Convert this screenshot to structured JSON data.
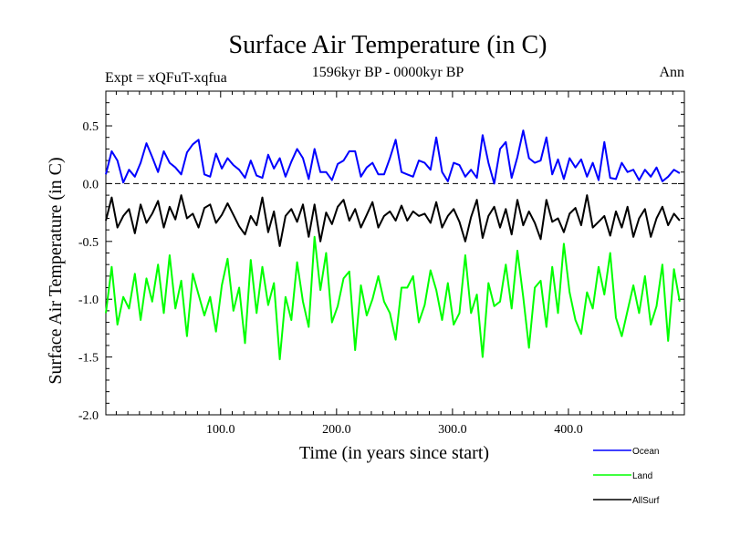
{
  "chart_data": {
    "type": "line",
    "title": "Surface Air Temperature (in C)",
    "subtitle": "1596kyr BP - 0000kyr BP",
    "left_label": "Expt = xQFuT-xqfua",
    "right_label": "Ann",
    "xlabel": "Time (in years since start)",
    "ylabel": "Surface Air Temperature (in C)",
    "xlim": [
      1,
      500
    ],
    "ylim": [
      -2.0,
      0.8
    ],
    "x_ticks": [
      100,
      200,
      300,
      400
    ],
    "x_tick_labels": [
      "100.0",
      "200.0",
      "300.0",
      "400.0"
    ],
    "y_ticks": [
      -2.0,
      -1.5,
      -1.0,
      -0.5,
      0.0,
      0.5
    ],
    "y_tick_labels": [
      "-2.0",
      "-1.5",
      "-1.0",
      "-0.5",
      "0.0",
      "0.5"
    ],
    "zero_line": true,
    "legend_placement": "bottom-right",
    "series": [
      {
        "name": "Ocean",
        "color": "#0000ff",
        "x_start": 1,
        "x_step": 5,
        "values": [
          0.08,
          0.28,
          0.2,
          0.01,
          0.12,
          0.06,
          0.18,
          0.35,
          0.23,
          0.1,
          0.28,
          0.18,
          0.14,
          0.08,
          0.27,
          0.34,
          0.38,
          0.08,
          0.06,
          0.26,
          0.13,
          0.22,
          0.16,
          0.12,
          0.05,
          0.2,
          0.07,
          0.05,
          0.25,
          0.13,
          0.22,
          0.06,
          0.19,
          0.3,
          0.22,
          0.04,
          0.3,
          0.1,
          0.1,
          0.03,
          0.17,
          0.2,
          0.28,
          0.28,
          0.06,
          0.14,
          0.18,
          0.08,
          0.08,
          0.22,
          0.38,
          0.1,
          0.08,
          0.06,
          0.2,
          0.18,
          0.12,
          0.4,
          0.1,
          0.02,
          0.18,
          0.16,
          0.06,
          0.12,
          0.05,
          0.42,
          0.18,
          0.0,
          0.3,
          0.36,
          0.05,
          0.23,
          0.46,
          0.22,
          0.18,
          0.2,
          0.4,
          0.08,
          0.21,
          0.04,
          0.22,
          0.14,
          0.21,
          0.06,
          0.18,
          0.03,
          0.36,
          0.05,
          0.04,
          0.18,
          0.1,
          0.12,
          0.03,
          0.12,
          0.06,
          0.14,
          0.02,
          0.06,
          0.12,
          0.09
        ]
      },
      {
        "name": "Land",
        "color": "#00ff00",
        "x_start": 1,
        "x_step": 5,
        "values": [
          -1.12,
          -0.72,
          -1.22,
          -0.98,
          -1.08,
          -0.78,
          -1.18,
          -0.82,
          -1.02,
          -0.7,
          -1.12,
          -0.62,
          -1.08,
          -0.84,
          -1.32,
          -0.78,
          -0.96,
          -1.14,
          -0.98,
          -1.28,
          -0.88,
          -0.65,
          -1.1,
          -0.9,
          -1.38,
          -0.66,
          -1.12,
          -0.72,
          -1.05,
          -0.86,
          -1.52,
          -0.98,
          -1.18,
          -0.68,
          -1.02,
          -1.24,
          -0.46,
          -0.92,
          -0.6,
          -1.2,
          -1.06,
          -0.82,
          -0.76,
          -1.44,
          -0.88,
          -1.14,
          -1.0,
          -0.8,
          -1.02,
          -1.12,
          -1.35,
          -0.9,
          -0.9,
          -0.8,
          -1.2,
          -1.05,
          -0.75,
          -0.92,
          -1.18,
          -0.86,
          -1.22,
          -1.12,
          -0.62,
          -1.12,
          -0.96,
          -1.5,
          -0.86,
          -1.06,
          -1.02,
          -0.7,
          -1.08,
          -0.58,
          -0.98,
          -1.42,
          -0.9,
          -0.84,
          -1.24,
          -0.72,
          -1.12,
          -0.52,
          -0.94,
          -1.18,
          -1.3,
          -0.94,
          -1.08,
          -0.72,
          -0.96,
          -0.6,
          -1.16,
          -1.32,
          -1.1,
          -0.88,
          -1.12,
          -0.8,
          -1.22,
          -1.06,
          -0.7,
          -1.36,
          -0.74,
          -1.02
        ]
      },
      {
        "name": "AllSurf",
        "color": "#000000",
        "x_start": 1,
        "x_step": 5,
        "values": [
          -0.32,
          -0.12,
          -0.38,
          -0.28,
          -0.22,
          -0.43,
          -0.18,
          -0.34,
          -0.26,
          -0.15,
          -0.38,
          -0.2,
          -0.31,
          -0.1,
          -0.3,
          -0.26,
          -0.38,
          -0.21,
          -0.18,
          -0.34,
          -0.27,
          -0.17,
          -0.27,
          -0.37,
          -0.44,
          -0.28,
          -0.36,
          -0.12,
          -0.42,
          -0.24,
          -0.54,
          -0.28,
          -0.22,
          -0.33,
          -0.18,
          -0.46,
          -0.18,
          -0.5,
          -0.25,
          -0.35,
          -0.2,
          -0.14,
          -0.32,
          -0.22,
          -0.38,
          -0.27,
          -0.16,
          -0.38,
          -0.28,
          -0.24,
          -0.32,
          -0.19,
          -0.32,
          -0.24,
          -0.28,
          -0.26,
          -0.34,
          -0.16,
          -0.38,
          -0.28,
          -0.22,
          -0.33,
          -0.5,
          -0.29,
          -0.14,
          -0.47,
          -0.28,
          -0.2,
          -0.38,
          -0.22,
          -0.44,
          -0.14,
          -0.36,
          -0.24,
          -0.34,
          -0.48,
          -0.14,
          -0.33,
          -0.3,
          -0.42,
          -0.26,
          -0.21,
          -0.36,
          -0.1,
          -0.38,
          -0.33,
          -0.28,
          -0.45,
          -0.24,
          -0.38,
          -0.2,
          -0.46,
          -0.3,
          -0.22,
          -0.46,
          -0.3,
          -0.2,
          -0.36,
          -0.26,
          -0.32
        ]
      }
    ]
  }
}
